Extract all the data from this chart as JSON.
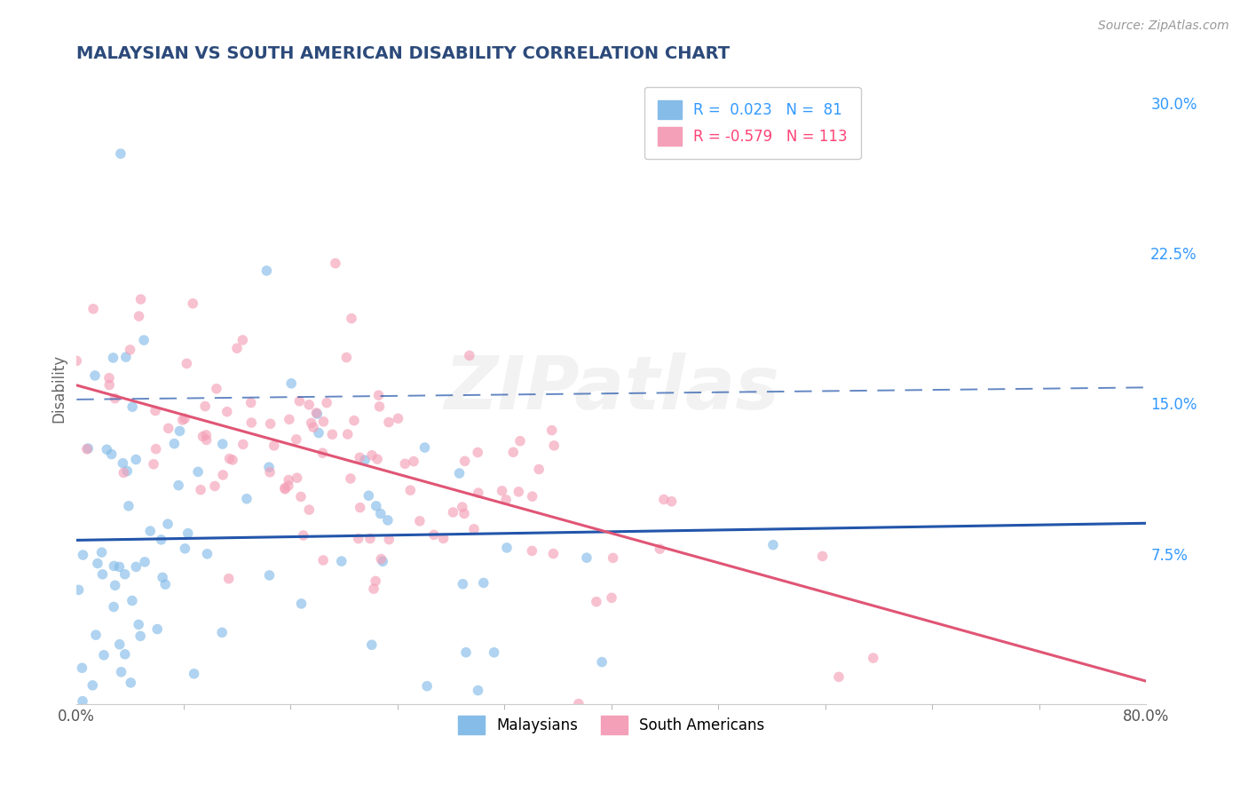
{
  "title": "MALAYSIAN VS SOUTH AMERICAN DISABILITY CORRELATION CHART",
  "source": "Source: ZipAtlas.com",
  "ylabel": "Disability",
  "xlim": [
    0.0,
    0.8
  ],
  "ylim": [
    0.0,
    0.315
  ],
  "yticks": [
    0.075,
    0.15,
    0.225,
    0.3
  ],
  "ytick_labels": [
    "7.5%",
    "15.0%",
    "22.5%",
    "30.0%"
  ],
  "xtick_labels_ends": [
    "0.0%",
    "80.0%"
  ],
  "R_malaysian": 0.023,
  "N_malaysian": 81,
  "R_south_american": -0.579,
  "N_south_american": 113,
  "color_malaysian": "#85bce8",
  "color_south_american": "#f4a0b8",
  "line_color_malaysian": "#2255aa",
  "line_color_south_american": "#e05575",
  "background_color": "#ffffff",
  "grid_color": "#c8d4e0",
  "watermark": "ZIPatlas",
  "title_color": "#2c4a7a",
  "source_color": "#999999",
  "legend_R_color_mal": "#3399ff",
  "legend_R_color_sa": "#ff4477"
}
